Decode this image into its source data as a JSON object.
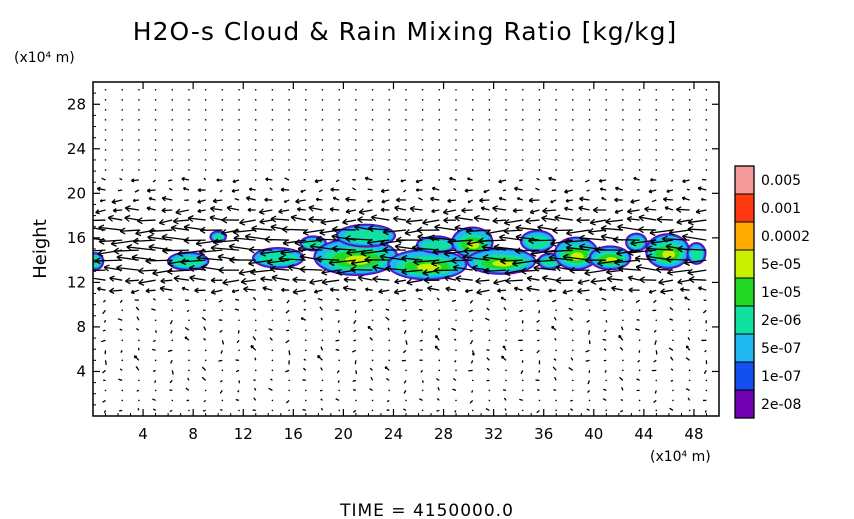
{
  "chart_data": {
    "type": "heatmap",
    "title": "H2O-s Cloud & Rain Mixing Ratio [kg/kg]",
    "ylabel": "Height",
    "y_unit": "(x10⁴ m)",
    "x_unit": "(x10⁴ m)",
    "xlim": [
      0,
      50
    ],
    "ylim": [
      0,
      30
    ],
    "x_ticks": [
      4,
      8,
      12,
      16,
      20,
      24,
      28,
      32,
      36,
      40,
      44,
      48
    ],
    "y_ticks": [
      4,
      8,
      12,
      16,
      20,
      24,
      28
    ],
    "colorbar": {
      "placement": "right",
      "levels": [
        {
          "label": "0.005",
          "color": "#f59a9a"
        },
        {
          "label": "0.001",
          "color": "#ff3a10"
        },
        {
          "label": "0.0002",
          "color": "#ffaa00"
        },
        {
          "label": "5e-05",
          "color": "#c8f000"
        },
        {
          "label": "1e-05",
          "color": "#22d822"
        },
        {
          "label": "2e-06",
          "color": "#10e0a0"
        },
        {
          "label": "5e-07",
          "color": "#20b8f0"
        },
        {
          "label": "1e-07",
          "color": "#1450f0"
        },
        {
          "label": "2e-08",
          "color": "#7000b0"
        }
      ]
    },
    "cloud_blobs": [
      {
        "x": 0.2,
        "y": 13.9,
        "rx": 0.5,
        "ry": 0.6,
        "core": 0
      },
      {
        "x": 7.6,
        "y": 13.9,
        "rx": 1.5,
        "ry": 0.65,
        "core": 0
      },
      {
        "x": 10.0,
        "y": 16.1,
        "rx": 0.5,
        "ry": 0.35,
        "core": 0
      },
      {
        "x": 14.8,
        "y": 14.2,
        "rx": 1.9,
        "ry": 0.75,
        "core": 0
      },
      {
        "x": 17.6,
        "y": 15.5,
        "rx": 0.9,
        "ry": 0.5,
        "core": 0
      },
      {
        "x": 21.0,
        "y": 14.3,
        "rx": 3.2,
        "ry": 1.5,
        "core": 1
      },
      {
        "x": 21.8,
        "y": 16.2,
        "rx": 2.2,
        "ry": 0.85,
        "core": 0
      },
      {
        "x": 26.7,
        "y": 13.6,
        "rx": 3.0,
        "ry": 1.2,
        "core": 1
      },
      {
        "x": 27.4,
        "y": 15.4,
        "rx": 1.4,
        "ry": 0.6,
        "core": 0
      },
      {
        "x": 30.3,
        "y": 15.6,
        "rx": 1.5,
        "ry": 1.2,
        "core": 1
      },
      {
        "x": 32.6,
        "y": 13.9,
        "rx": 2.6,
        "ry": 1.0,
        "core": 1
      },
      {
        "x": 35.5,
        "y": 15.7,
        "rx": 1.2,
        "ry": 0.8,
        "core": 0
      },
      {
        "x": 36.5,
        "y": 13.9,
        "rx": 0.8,
        "ry": 0.55,
        "core": 0
      },
      {
        "x": 38.6,
        "y": 14.6,
        "rx": 1.6,
        "ry": 1.3,
        "core": 1
      },
      {
        "x": 41.3,
        "y": 14.2,
        "rx": 1.5,
        "ry": 0.9,
        "core": 1
      },
      {
        "x": 43.4,
        "y": 15.6,
        "rx": 0.7,
        "ry": 0.65,
        "core": 0
      },
      {
        "x": 45.9,
        "y": 14.8,
        "rx": 1.6,
        "ry": 1.4,
        "core": 1
      },
      {
        "x": 48.2,
        "y": 14.6,
        "rx": 0.6,
        "ry": 0.8,
        "core": 0
      }
    ]
  },
  "footer": {
    "time_label": "TIME = 4150000.0"
  }
}
